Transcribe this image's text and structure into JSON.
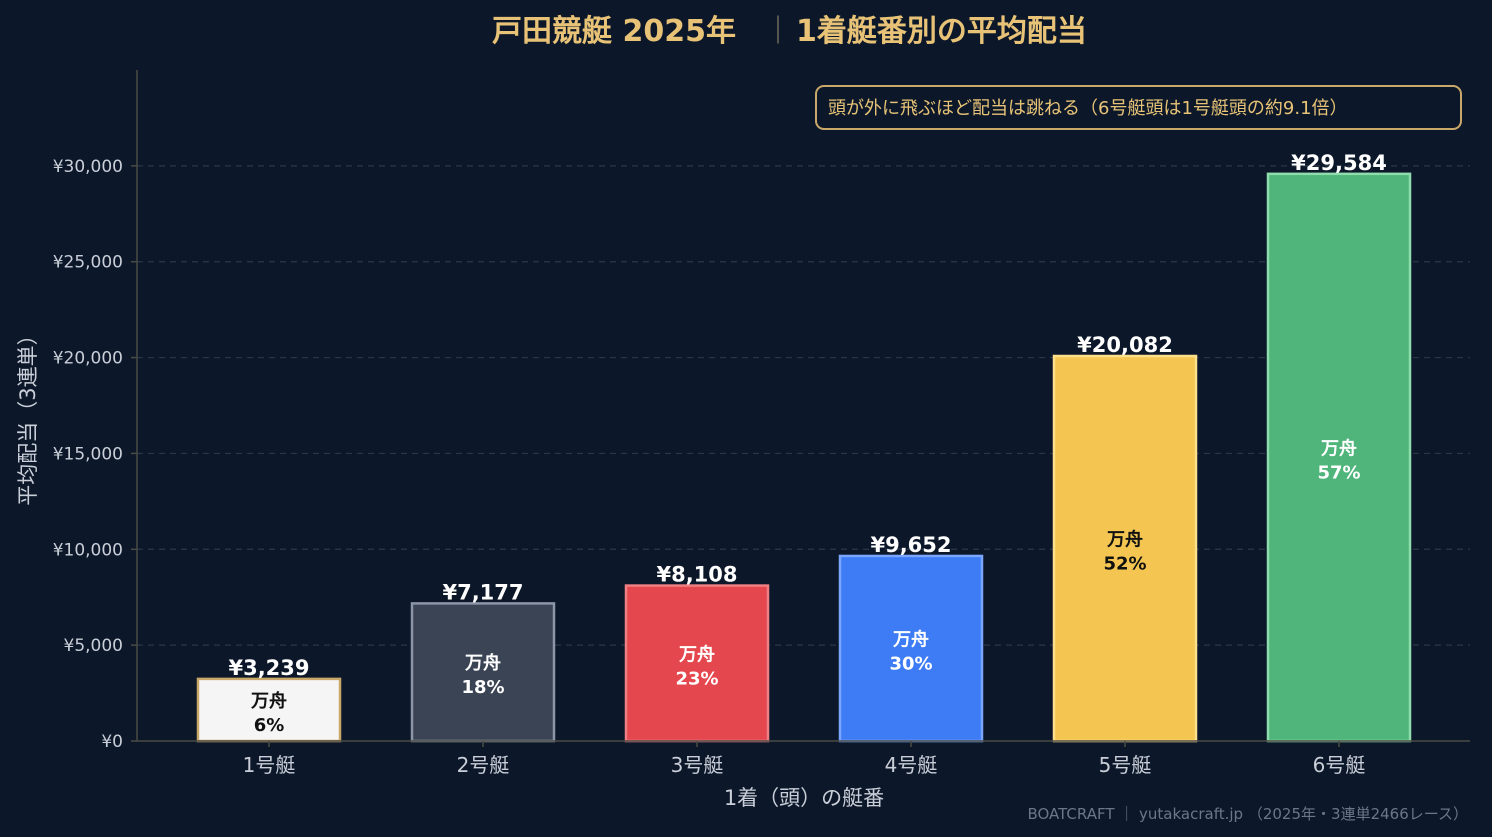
{
  "chart_data": {
    "type": "bar",
    "title": "戸田競艇 2025年",
    "subtitle": "1着艇番別の平均配当",
    "xlabel": "1着（頭）の艇番",
    "ylabel": "平均配当（3連単）",
    "categories": [
      "1号艇",
      "2号艇",
      "3号艇",
      "4号艇",
      "5号艇",
      "6号艇"
    ],
    "values": [
      3239,
      7177,
      8108,
      9652,
      20082,
      29584
    ],
    "value_labels": [
      "¥3,239",
      "¥7,177",
      "¥8,108",
      "¥9,652",
      "¥20,082",
      "¥29,584"
    ],
    "inner_label_prefix": "万舟",
    "manshu_pct": [
      "6%",
      "18%",
      "23%",
      "30%",
      "52%",
      "57%"
    ],
    "ylim": [
      0,
      35000
    ],
    "yticks": [
      0,
      5000,
      10000,
      15000,
      20000,
      25000,
      30000
    ],
    "ytick_labels": [
      "¥0",
      "¥5,000",
      "¥10,000",
      "¥15,000",
      "¥20,000",
      "¥25,000",
      "¥30,000"
    ],
    "bar_colors": [
      "#f5f5f5",
      "#3b4454",
      "#e5474e",
      "#3d7cf5",
      "#f4c651",
      "#4fb57a"
    ],
    "bar_edge_colors": [
      "#c9a86a",
      "#8d96a6",
      "#f07f83",
      "#7aa6ff",
      "#ffe08a",
      "#8fdcac"
    ],
    "inner_text_colors": [
      "#111111",
      "#ffffff",
      "#ffffff",
      "#ffffff",
      "#111111",
      "#ffffff"
    ],
    "grid": true,
    "annotation": "頭が外に飛ぶほど配当は跳ねる（6号艇頭は1号艇頭の約9.1倍）",
    "footer": "BOATCRAFT ｜ yutakacraft.jp （2025年・3連単2466レース）",
    "colors": {
      "background": "#0c1829",
      "title": "#e8c377",
      "grid": "#2b3746",
      "axis": "#4a4a44"
    }
  }
}
